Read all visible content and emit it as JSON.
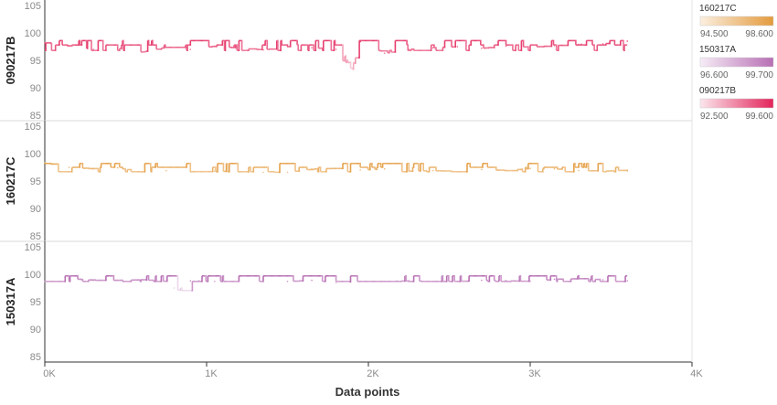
{
  "chart_data": {
    "type": "line",
    "xlabel": "Data points",
    "xlim": [
      0,
      4000
    ],
    "x_ticks": [
      {
        "value": 0,
        "label": "0K"
      },
      {
        "value": 1000,
        "label": "1K"
      },
      {
        "value": 2000,
        "label": "2K"
      },
      {
        "value": 3000,
        "label": "3K"
      },
      {
        "value": 4000,
        "label": "4K"
      }
    ],
    "ylim": [
      85,
      105
    ],
    "y_ticks": [
      85,
      90,
      95,
      100,
      105
    ],
    "grid": false,
    "legend_placement": "right",
    "rows": [
      {
        "name": "090217B",
        "color_min": "#fbe6ec",
        "color_max": "#e3245a",
        "color_range": [
          92.5,
          99.6
        ],
        "legend_min_label": "92.500",
        "legend_max_label": "99.600",
        "baseline": 96.8,
        "levels": [
          96.8,
          97.8,
          98.6
        ],
        "x": [
          0,
          150,
          300,
          450,
          600,
          750,
          900,
          1050,
          1200,
          1350,
          1500,
          1650,
          1800,
          1900,
          1950,
          2100,
          2250,
          2400,
          2550,
          2700,
          2850,
          3000,
          3150,
          3300,
          3450,
          3600
        ],
        "values": [
          98.2,
          97.6,
          97.0,
          97.2,
          96.5,
          97.4,
          97.0,
          97.6,
          97.2,
          96.9,
          97.5,
          97.3,
          97.0,
          93.5,
          98.4,
          96.3,
          97.0,
          97.3,
          97.5,
          97.2,
          97.6,
          97.4,
          97.7,
          97.9,
          98.0,
          98.5
        ]
      },
      {
        "name": "160217C",
        "color_min": "#fbefe0",
        "color_max": "#e49a3c",
        "color_range": [
          94.5,
          98.6
        ],
        "legend_min_label": "94.500",
        "legend_max_label": "98.600",
        "baseline": 96.7,
        "levels": [
          96.7,
          97.5,
          98.2
        ],
        "x": [
          0,
          150,
          300,
          450,
          600,
          750,
          900,
          1050,
          1200,
          1350,
          1500,
          1650,
          1800,
          1950,
          2100,
          2250,
          2400,
          2550,
          2700,
          2850,
          3000,
          3150,
          3300,
          3450,
          3600
        ],
        "values": [
          98.3,
          97.5,
          97.2,
          97.4,
          96.6,
          96.9,
          96.7,
          96.8,
          96.7,
          96.6,
          96.6,
          97.2,
          97.3,
          97.0,
          97.2,
          96.8,
          96.9,
          96.7,
          97.1,
          96.9,
          97.3,
          97.2,
          96.9,
          96.8,
          97.0
        ]
      },
      {
        "name": "150317A",
        "color_min": "#f6ecf6",
        "color_max": "#b76fb4",
        "color_range": [
          96.6,
          99.7
        ],
        "legend_min_label": "96.600",
        "legend_max_label": "99.700",
        "baseline": 98.7,
        "levels": [
          98.7,
          99.7
        ],
        "x": [
          0,
          150,
          300,
          450,
          600,
          750,
          800,
          850,
          900,
          1050,
          1200,
          1350,
          1500,
          1650,
          1800,
          1950,
          2100,
          2250,
          2400,
          2550,
          2700,
          2850,
          3000,
          3150,
          3300,
          3450,
          3600
        ],
        "values": [
          98.7,
          99.2,
          98.9,
          98.9,
          99.0,
          98.7,
          97.5,
          97.1,
          98.8,
          98.7,
          98.7,
          98.7,
          98.7,
          98.9,
          98.5,
          98.7,
          98.7,
          98.8,
          98.7,
          98.7,
          98.9,
          98.8,
          98.7,
          99.1,
          99.2,
          99.0,
          98.8
        ]
      }
    ]
  }
}
